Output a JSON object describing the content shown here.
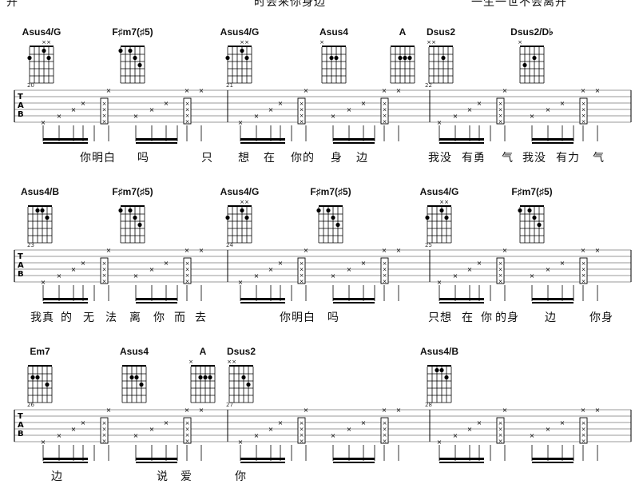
{
  "top_text": [
    "开",
    "时会来你身边",
    "一生一世不会离开"
  ],
  "tab_letters": [
    "T",
    "A",
    "B"
  ],
  "rows": [
    {
      "measures": [
        "20",
        "21",
        "22"
      ],
      "chords": [
        "Asus4/G",
        "F♯m7(♯5)",
        "Asus4/G",
        "Asus4",
        "A",
        "Dsus2",
        "Dsus2/D♭"
      ],
      "lyrics": [
        "你明白",
        "吗",
        "只",
        "想",
        "在",
        "你的",
        "身",
        "边",
        "我没",
        "有勇",
        "气",
        "我没",
        "有力",
        "气"
      ]
    },
    {
      "measures": [
        "23",
        "24",
        "25"
      ],
      "chords": [
        "Asus4/B",
        "F♯m7(♯5)",
        "Asus4/G",
        "F♯m7(♯5)",
        "Asus4/G",
        "F♯m7(♯5)"
      ],
      "lyrics": [
        "我真",
        "的",
        "无",
        "法",
        "离",
        "你",
        "而",
        "去",
        "你明白",
        "吗",
        "只想",
        "在",
        "你",
        "的身",
        "边",
        "你身"
      ]
    },
    {
      "measures": [
        "26",
        "27",
        "28"
      ],
      "chords": [
        "Em7",
        "Asus4",
        "A",
        "Dsus2",
        "Asus4/B"
      ],
      "lyrics": [
        "边",
        "说",
        "爱",
        "你"
      ]
    }
  ]
}
